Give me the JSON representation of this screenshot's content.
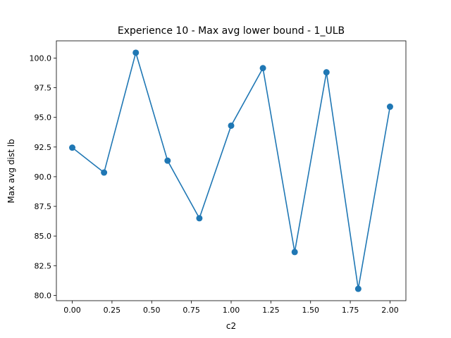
{
  "chart_data": {
    "type": "line",
    "title": "Experience 10 - Max avg lower bound - 1_ULB",
    "xlabel": "c2",
    "ylabel": "Max avg dist lb",
    "x": [
      0.0,
      0.2,
      0.4,
      0.6,
      0.8,
      1.0,
      1.2,
      1.4,
      1.6,
      1.8,
      2.0
    ],
    "series": [
      {
        "name": "Max avg dist lb",
        "values": [
          92.45,
          90.35,
          100.45,
          91.35,
          86.5,
          94.3,
          99.15,
          83.65,
          98.8,
          80.55,
          95.9
        ]
      }
    ],
    "xlim": [
      -0.1,
      2.1
    ],
    "ylim": [
      79.55,
      101.45
    ],
    "xticks": [
      0.0,
      0.25,
      0.5,
      0.75,
      1.0,
      1.25,
      1.5,
      1.75,
      2.0
    ],
    "xtick_labels": [
      "0.00",
      "0.25",
      "0.50",
      "0.75",
      "1.00",
      "1.25",
      "1.50",
      "1.75",
      "2.00"
    ],
    "yticks": [
      80.0,
      82.5,
      85.0,
      87.5,
      90.0,
      92.5,
      95.0,
      97.5,
      100.0
    ],
    "ytick_labels": [
      "80.0",
      "82.5",
      "85.0",
      "87.5",
      "90.0",
      "92.5",
      "95.0",
      "97.5",
      "100.0"
    ],
    "grid": false,
    "legend": "none",
    "colors": {
      "line": "#1f77b4",
      "axis": "#000000",
      "background": "#ffffff"
    }
  }
}
